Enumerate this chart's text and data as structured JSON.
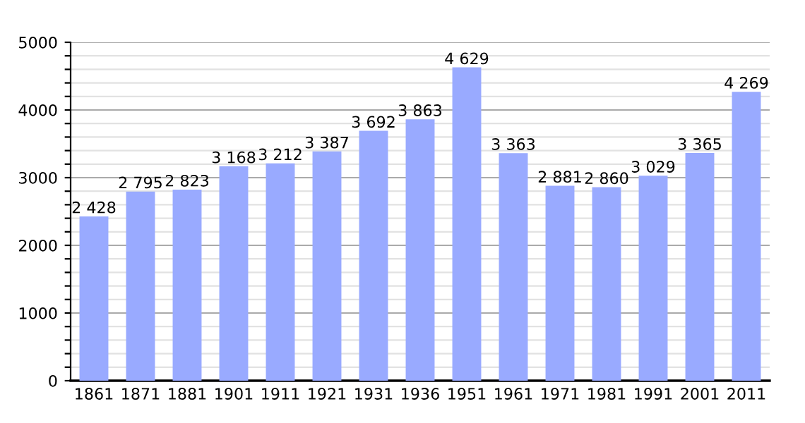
{
  "chart_data": {
    "type": "bar",
    "categories": [
      "1861",
      "1871",
      "1881",
      "1901",
      "1911",
      "1921",
      "1931",
      "1936",
      "1951",
      "1961",
      "1971",
      "1981",
      "1991",
      "2001",
      "2011"
    ],
    "values": [
      2428,
      2795,
      2823,
      3168,
      3212,
      3387,
      3692,
      3863,
      4629,
      3363,
      2881,
      2860,
      3029,
      3365,
      4269
    ],
    "value_labels": [
      "2 428",
      "2 795",
      "2 823",
      "3 168",
      "3 212",
      "3 387",
      "3 692",
      "3 863",
      "4 629",
      "3 363",
      "2 881",
      "2 860",
      "3 029",
      "3 365",
      "4 269"
    ],
    "color": "#99aaff",
    "ylim": [
      0,
      5000
    ],
    "yticks": [
      0,
      {
        "value": 200,
        "label": null
      },
      {
        "value": 400,
        "label": null
      },
      {
        "value": 600,
        "label": null
      },
      {
        "value": 800,
        "label": null
      },
      1000,
      {
        "value": 1200,
        "label": null
      },
      {
        "value": 1400,
        "label": null
      },
      {
        "value": 1600,
        "label": null
      },
      {
        "value": 1800,
        "label": null
      },
      2000,
      {
        "value": 2200,
        "label": null
      },
      {
        "value": 2400,
        "label": null
      },
      {
        "value": 2600,
        "label": null
      },
      {
        "value": 2800,
        "label": null
      },
      3000,
      {
        "value": 3200,
        "label": null
      },
      {
        "value": 3400,
        "label": null
      },
      {
        "value": 3600,
        "label": null
      },
      {
        "value": 3800,
        "label": null
      },
      4000,
      {
        "value": 4200,
        "label": null
      },
      {
        "value": 4400,
        "label": null
      },
      {
        "value": 4600,
        "label": null
      },
      {
        "value": 4800,
        "label": null
      },
      5000
    ],
    "grid": "y"
  }
}
